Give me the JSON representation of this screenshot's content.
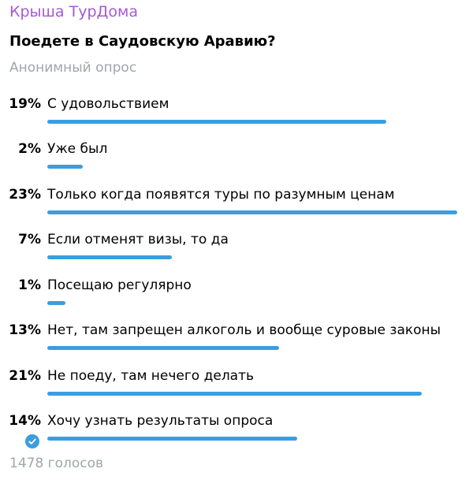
{
  "channel": {
    "name": "Крыша ТурДома",
    "color": "#a45ad4"
  },
  "poll": {
    "question": "Поедете в Саудовскую Аравию?",
    "type_label": "Анонимный опрос",
    "bar_color": "#3a9ee0",
    "options": [
      {
        "percent_label": "19%",
        "percent": 19,
        "text": "С удовольствием",
        "chosen": false
      },
      {
        "percent_label": "2%",
        "percent": 2,
        "text": "Уже был",
        "chosen": false
      },
      {
        "percent_label": "23%",
        "percent": 23,
        "text": "Только когда появятся туры по разумным ценам",
        "chosen": false
      },
      {
        "percent_label": "7%",
        "percent": 7,
        "text": "Если отменят визы, то да",
        "chosen": false
      },
      {
        "percent_label": "1%",
        "percent": 1,
        "text": "Посещаю регулярно",
        "chosen": false
      },
      {
        "percent_label": "13%",
        "percent": 13,
        "text": "Нет, там запрещен алкоголь и вообще суровые законы",
        "chosen": false
      },
      {
        "percent_label": "21%",
        "percent": 21,
        "text": "Не поеду, там нечего делать",
        "chosen": false
      },
      {
        "percent_label": "14%",
        "percent": 14,
        "text": "Хочу узнать результаты опроса",
        "chosen": true,
        "chosen_icon": "check-circle-icon"
      }
    ],
    "votes_label": "1478 голосов"
  }
}
